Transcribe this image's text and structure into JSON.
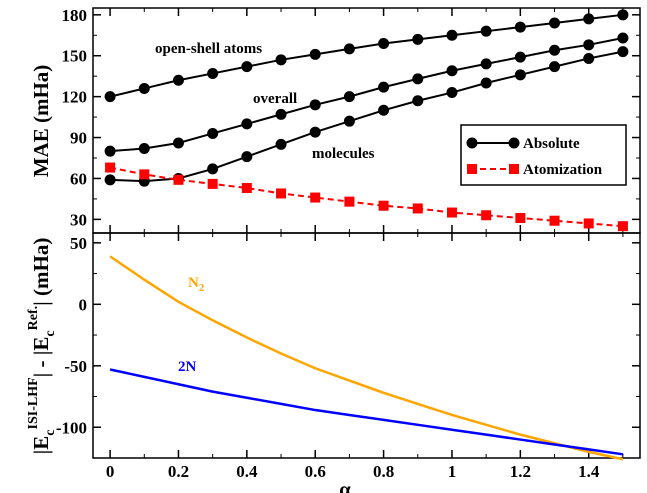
{
  "chart_data": [
    {
      "type": "line",
      "panel": "top",
      "ylabel": "MAE (mHa)",
      "xlabel": "",
      "xlim": [
        -0.05,
        1.55
      ],
      "ylim": [
        20,
        185
      ],
      "yticks": [
        30,
        60,
        90,
        120,
        150,
        180
      ],
      "x": [
        0,
        0.1,
        0.2,
        0.3,
        0.4,
        0.5,
        0.6,
        0.7,
        0.8,
        0.9,
        1.0,
        1.1,
        1.2,
        1.3,
        1.4,
        1.5
      ],
      "series": [
        {
          "name": "open-shell atoms",
          "group": "Absolute",
          "color": "#000000",
          "marker": "circle",
          "values": [
            120,
            126,
            132,
            137,
            142,
            147,
            151,
            155,
            159,
            162,
            165,
            168,
            171,
            174,
            177,
            180
          ]
        },
        {
          "name": "overall",
          "group": "Absolute",
          "color": "#000000",
          "marker": "circle",
          "values": [
            80,
            82,
            86,
            93,
            100,
            107,
            114,
            120,
            127,
            133,
            139,
            144,
            149,
            154,
            158,
            163
          ]
        },
        {
          "name": "molecules",
          "group": "Absolute",
          "color": "#000000",
          "marker": "circle",
          "values": [
            59,
            58,
            60,
            67,
            76,
            85,
            94,
            102,
            110,
            117,
            123,
            130,
            136,
            142,
            148,
            153
          ]
        },
        {
          "name": "Atomization",
          "group": "Atomization",
          "color": "#ff0000",
          "marker": "square",
          "dash": true,
          "values": [
            68,
            63,
            59,
            56,
            53,
            49,
            46,
            43,
            40,
            38,
            35,
            33,
            31,
            29,
            27,
            25
          ]
        }
      ],
      "legend": {
        "position": "right",
        "entries": [
          "Absolute",
          "Atomization"
        ]
      },
      "annotations": [
        "open-shell atoms",
        "overall",
        "molecules"
      ]
    },
    {
      "type": "line",
      "panel": "bottom",
      "ylabel_parts": {
        "lead": "|E",
        "sub1": "c",
        "sup1": "ISI-LHF",
        "mid": "| - |E",
        "sub2": "c",
        "sup2": "Ref.",
        "tail": "| (mHa)"
      },
      "xlabel": "α",
      "xlim": [
        -0.05,
        1.55
      ],
      "ylim": [
        -125,
        58
      ],
      "yticks": [
        50,
        0,
        -50,
        -100
      ],
      "xticks": [
        "0",
        "0.2",
        "0.4",
        "0.6",
        "0.8",
        "1",
        "1.2",
        "1.4"
      ],
      "x": [
        0,
        0.1,
        0.2,
        0.3,
        0.4,
        0.5,
        0.6,
        0.7,
        0.8,
        0.9,
        1.0,
        1.1,
        1.2,
        1.3,
        1.4,
        1.5
      ],
      "series": [
        {
          "name": "N2",
          "color": "#ffa500",
          "values": [
            39,
            20,
            2,
            -13,
            -27,
            -40,
            -52,
            -62,
            -72,
            -81,
            -90,
            -98,
            -106,
            -113,
            -120,
            -126
          ]
        },
        {
          "name": "2N",
          "color": "#0000ff",
          "values": [
            -53,
            -59,
            -65,
            -71,
            -76,
            -81,
            -86,
            -90,
            -94,
            -98,
            -102,
            -106,
            -110,
            -114,
            -118,
            -122
          ]
        }
      ],
      "annotations": [
        {
          "text": "N",
          "sub": "2",
          "color": "#ffa500"
        },
        {
          "text": "2N",
          "color": "#0000ff"
        }
      ]
    }
  ]
}
